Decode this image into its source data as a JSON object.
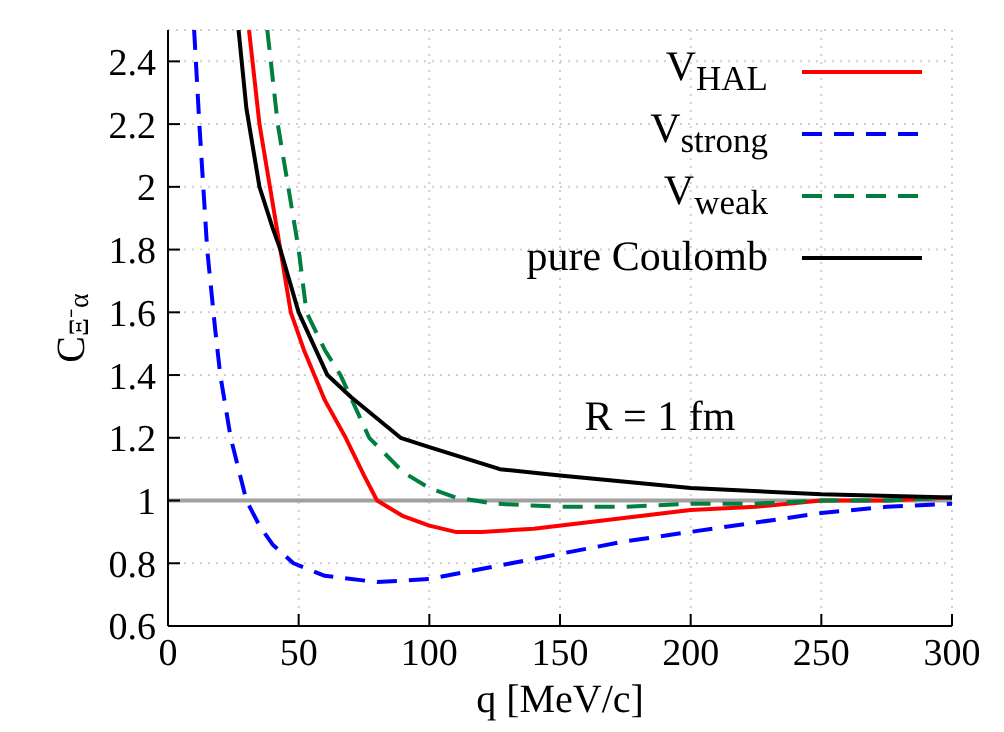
{
  "chart_data": {
    "type": "line",
    "xlabel": "q [MeV/c]",
    "ylabel": "C$_{Ξ⁻α}$",
    "annotations": [
      "R = 1 fm"
    ],
    "xlim": [
      0,
      300
    ],
    "xticks": [
      0,
      50,
      100,
      150,
      200,
      250,
      300
    ],
    "ylim": [
      0.6,
      2.5
    ],
    "yticks": [
      0.6,
      0.8,
      1,
      1.2,
      1.4,
      1.6,
      1.8,
      2,
      2.2,
      2.4
    ],
    "grid": true,
    "legend": "top right",
    "marker": "none",
    "ref_lines": [
      {
        "axis": "y",
        "value": 1,
        "color": "#a0a0a0"
      }
    ],
    "series": [
      {
        "name": "V$_{HAL}$",
        "color": "#ff0000",
        "line_style": "solid",
        "x": [
          31,
          35,
          40,
          43,
          47,
          52,
          56,
          60,
          68,
          75,
          80,
          90,
          100,
          110,
          120,
          140,
          160,
          180,
          200,
          225,
          250,
          275,
          300
        ],
        "values": [
          2.5,
          2.2,
          1.95,
          1.8,
          1.6,
          1.48,
          1.4,
          1.32,
          1.2,
          1.08,
          1.0,
          0.95,
          0.92,
          0.9,
          0.9,
          0.91,
          0.93,
          0.95,
          0.97,
          0.98,
          1.0,
          1.0,
          1.01
        ]
      },
      {
        "name": "V$_{strong}$",
        "color": "#0000ff",
        "line_style": "dashed",
        "x": [
          10,
          12,
          15,
          18,
          20,
          24,
          30,
          35,
          40,
          48,
          60,
          80,
          100,
          125,
          150,
          175,
          200,
          225,
          250,
          275,
          300
        ],
        "values": [
          2.5,
          2.2,
          1.8,
          1.55,
          1.4,
          1.2,
          1.0,
          0.92,
          0.86,
          0.8,
          0.76,
          0.74,
          0.75,
          0.79,
          0.83,
          0.87,
          0.9,
          0.93,
          0.96,
          0.98,
          0.99
        ]
      },
      {
        "name": "V$_{weak}$",
        "color": "#007f3f",
        "line_style": "dashed",
        "x": [
          38,
          42,
          46,
          50,
          53,
          60,
          66,
          77,
          90,
          100,
          110,
          125,
          150,
          175,
          200,
          225,
          250,
          275,
          300
        ],
        "values": [
          2.5,
          2.2,
          2.0,
          1.8,
          1.6,
          1.48,
          1.4,
          1.2,
          1.09,
          1.04,
          1.01,
          0.99,
          0.98,
          0.98,
          0.99,
          0.99,
          1.0,
          1.0,
          1.01
        ]
      },
      {
        "name": "pure Coulomb",
        "color": "#000000",
        "line_style": "solid",
        "x": [
          27,
          30,
          35,
          40,
          43,
          50,
          61,
          70,
          89,
          100,
          127,
          150,
          200,
          250,
          300
        ],
        "values": [
          2.5,
          2.25,
          2.0,
          1.87,
          1.8,
          1.6,
          1.4,
          1.33,
          1.2,
          1.17,
          1.1,
          1.08,
          1.04,
          1.02,
          1.01
        ]
      }
    ]
  }
}
